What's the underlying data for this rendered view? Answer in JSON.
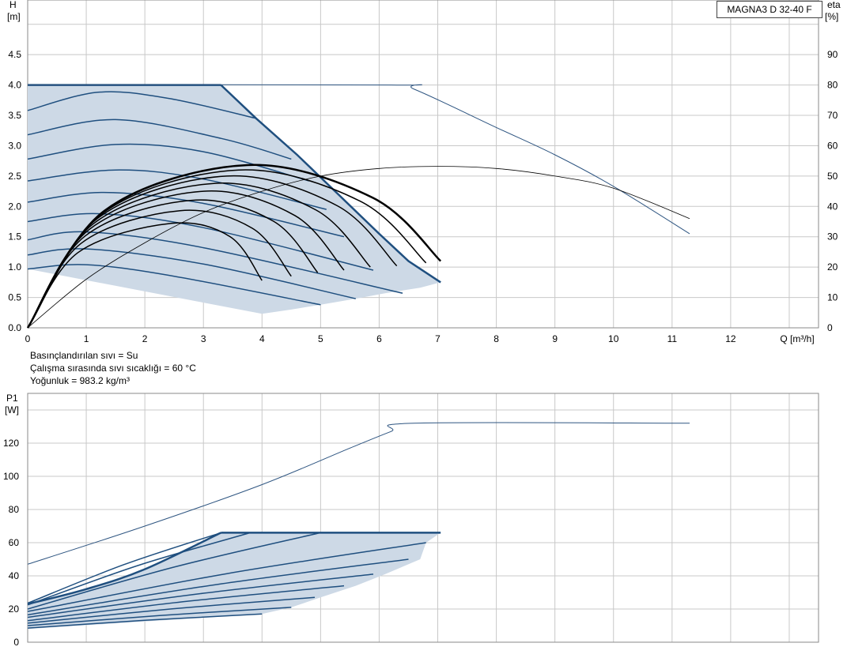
{
  "model": "MAGNA3 D 32-40 F",
  "fluid_info": [
    "Basınçlandırılan sıvı = Su",
    "Çalışma sırasında sıvı sıcaklığı = 60 °C",
    "Yoğunluk = 983.2 kg/m³"
  ],
  "colors": {
    "region_fill": "#cdd9e6",
    "region_line": "#1f4f7f",
    "system_curve": "#000000",
    "single_line": "#2e5581",
    "eta_line": "#000000"
  },
  "chart_data": [
    {
      "type": "line",
      "id": "head",
      "title": "",
      "ylabel": [
        "H",
        "[m]"
      ],
      "y2label": [
        "eta",
        "[%]"
      ],
      "xlabel": "Q [m³/h]",
      "xlim": [
        0,
        13.5
      ],
      "ylim": [
        0,
        5.4
      ],
      "y2lim": [
        0,
        108
      ],
      "x_ticks": [
        0,
        1,
        2,
        3,
        4,
        5,
        6,
        7,
        8,
        9,
        10,
        11,
        12
      ],
      "y_ticks": [
        0.0,
        0.5,
        1.0,
        1.5,
        2.0,
        2.5,
        3.0,
        3.5,
        4.0,
        4.5
      ],
      "y2_ticks": [
        0,
        10,
        20,
        30,
        40,
        50,
        60,
        70,
        80,
        90
      ],
      "grid": true,
      "region": {
        "top_head": 4.0,
        "top_end_q": 3.3,
        "max_curve": [
          [
            3.3,
            4.0
          ],
          [
            3.9,
            3.45
          ],
          [
            4.6,
            2.85
          ],
          [
            5.3,
            2.2
          ],
          [
            6.0,
            1.55
          ],
          [
            6.5,
            1.1
          ],
          [
            7.05,
            0.75
          ]
        ],
        "bottom_edge": [
          [
            4.0,
            0.23
          ],
          [
            4.5,
            0.3
          ],
          [
            5.0,
            0.38
          ],
          [
            5.6,
            0.48
          ],
          [
            6.1,
            0.57
          ],
          [
            6.7,
            0.66
          ],
          [
            7.05,
            0.75
          ]
        ]
      },
      "constant_speed_curves": [
        {
          "h0": 3.58,
          "points": [
            [
              0,
              3.58
            ],
            [
              1.2,
              3.88
            ],
            [
              2.4,
              3.78
            ],
            [
              3.9,
              3.45
            ]
          ]
        },
        {
          "h0": 3.18,
          "points": [
            [
              0,
              3.18
            ],
            [
              1.5,
              3.43
            ],
            [
              3.3,
              3.12
            ],
            [
              4.5,
              2.78
            ]
          ]
        },
        {
          "h0": 2.78,
          "points": [
            [
              0,
              2.78
            ],
            [
              1.5,
              3.02
            ],
            [
              3.0,
              2.9
            ],
            [
              4.8,
              2.42
            ]
          ]
        },
        {
          "h0": 2.42,
          "points": [
            [
              0,
              2.42
            ],
            [
              1.5,
              2.6
            ],
            [
              3.0,
              2.45
            ],
            [
              5.1,
              1.95
            ]
          ]
        },
        {
          "h0": 2.07,
          "points": [
            [
              0,
              2.07
            ],
            [
              1.3,
              2.23
            ],
            [
              3.0,
              2.05
            ],
            [
              5.4,
              1.5
            ]
          ]
        },
        {
          "h0": 1.75,
          "points": [
            [
              0,
              1.75
            ],
            [
              1.2,
              1.88
            ],
            [
              3.0,
              1.65
            ],
            [
              5.9,
              0.95
            ]
          ]
        },
        {
          "h0": 1.45,
          "points": [
            [
              0,
              1.45
            ],
            [
              1.0,
              1.58
            ],
            [
              3.0,
              1.32
            ],
            [
              6.4,
              0.57
            ]
          ]
        },
        {
          "h0": 1.2,
          "points": [
            [
              0,
              1.2
            ],
            [
              1.0,
              1.3
            ],
            [
              3.0,
              1.05
            ],
            [
              5.6,
              0.48
            ]
          ]
        },
        {
          "h0": 0.97,
          "points": [
            [
              0,
              0.97
            ],
            [
              1.0,
              1.04
            ],
            [
              2.5,
              0.85
            ],
            [
              5.0,
              0.38
            ]
          ]
        },
        {
          "h0": 0.0,
          "points": [
            [
              0.0,
              0.0
            ]
          ]
        }
      ],
      "constant_speed_bottom_ends": [
        [
          4.0,
          0.23
        ],
        [
          4.5,
          0.3
        ],
        [
          5.0,
          0.38
        ],
        [
          5.6,
          0.48
        ],
        [
          6.1,
          0.57
        ],
        [
          6.7,
          0.66
        ],
        [
          7.05,
          0.75
        ]
      ],
      "system_curves": [
        {
          "end": [
            4.0,
            0.78
          ],
          "peak": [
            2.45,
            1.72
          ]
        },
        {
          "end": [
            4.5,
            0.85
          ],
          "peak": [
            2.6,
            1.93
          ]
        },
        {
          "end": [
            4.95,
            0.91
          ],
          "peak": [
            2.8,
            2.1
          ]
        },
        {
          "end": [
            5.4,
            0.95
          ],
          "peak": [
            3.0,
            2.25
          ]
        },
        {
          "end": [
            5.85,
            1.0
          ],
          "peak": [
            3.2,
            2.38
          ]
        },
        {
          "end": [
            6.3,
            1.02
          ],
          "peak": [
            3.4,
            2.5
          ]
        },
        {
          "end": [
            6.8,
            1.07
          ],
          "peak": [
            3.6,
            2.6
          ]
        },
        {
          "end": [
            7.05,
            1.1
          ],
          "peak": [
            3.75,
            2.68
          ]
        }
      ],
      "single_head_curve": [
        [
          0,
          4.0
        ],
        [
          6.2,
          4.0
        ],
        [
          6.6,
          3.93
        ],
        [
          8.0,
          3.3
        ],
        [
          9.0,
          2.85
        ],
        [
          10.0,
          2.33
        ],
        [
          11.3,
          1.55
        ]
      ],
      "eta_curve": [
        [
          0,
          0
        ],
        [
          1.0,
          16
        ],
        [
          2.0,
          28
        ],
        [
          3.0,
          38
        ],
        [
          4.0,
          45
        ],
        [
          5.0,
          50
        ],
        [
          6.0,
          52.5
        ],
        [
          7.0,
          53.2
        ],
        [
          8.0,
          52.5
        ],
        [
          9.0,
          50
        ],
        [
          10.0,
          46
        ],
        [
          11.3,
          36
        ]
      ]
    },
    {
      "type": "line",
      "id": "power",
      "title": "",
      "ylabel": [
        "P1",
        "[W]"
      ],
      "xlim": [
        0,
        13.5
      ],
      "ylim": [
        0,
        150
      ],
      "y_ticks": [
        0,
        20,
        40,
        60,
        80,
        100,
        120
      ],
      "grid": true,
      "region": {
        "top_power": 66,
        "top_start_q": 3.3,
        "top_end_q": 7.05,
        "left_edge": [
          [
            0,
            23
          ],
          [
            1.0,
            32
          ],
          [
            2.0,
            44
          ],
          [
            3.3,
            66
          ]
        ],
        "bottom_edge": [
          [
            4.0,
            17
          ],
          [
            4.5,
            21
          ],
          [
            5.0,
            27
          ],
          [
            5.6,
            34
          ],
          [
            6.1,
            41
          ],
          [
            6.7,
            50
          ],
          [
            6.8,
            60
          ],
          [
            7.05,
            66
          ]
        ]
      },
      "speed_curves": [
        {
          "start": 23.5,
          "end": [
            3.3,
            66
          ]
        },
        {
          "start": 22.5,
          "end": [
            3.8,
            66
          ]
        },
        {
          "start": 20,
          "end": [
            5.0,
            66
          ]
        },
        {
          "start": 18.5,
          "end": [
            6.8,
            60
          ]
        },
        {
          "start": 16.5,
          "end": [
            6.5,
            50
          ]
        },
        {
          "start": 15,
          "end": [
            5.9,
            41
          ]
        },
        {
          "start": 13,
          "end": [
            5.4,
            34
          ]
        },
        {
          "start": 11.5,
          "end": [
            4.9,
            27
          ]
        },
        {
          "start": 10,
          "end": [
            4.5,
            21
          ]
        },
        {
          "start": 8.5,
          "end": [
            4.0,
            17
          ]
        }
      ],
      "single_power_curve": [
        [
          0,
          47
        ],
        [
          2.0,
          70
        ],
        [
          4.0,
          95
        ],
        [
          5.5,
          117
        ],
        [
          6.2,
          127
        ],
        [
          6.6,
          132
        ],
        [
          11.3,
          132
        ]
      ]
    }
  ]
}
